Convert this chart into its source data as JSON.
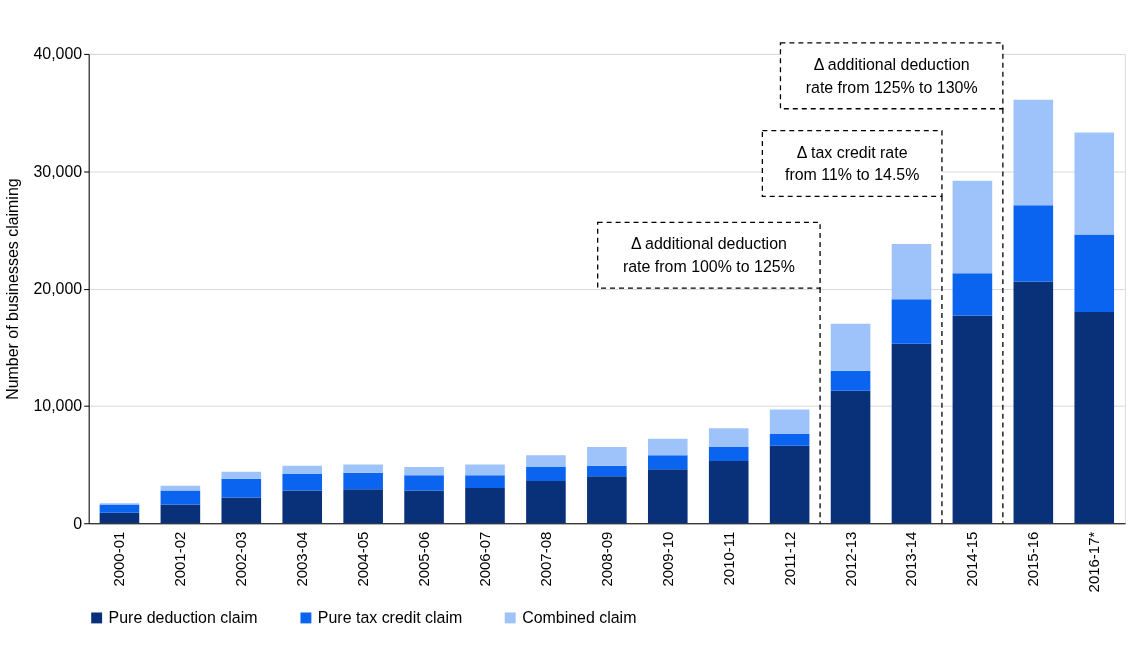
{
  "chart_data": {
    "type": "bar",
    "stacked": true,
    "ylabel": "Number of businesses claiming",
    "categories": [
      "2000-01",
      "2001-02",
      "2002-03",
      "2003-04",
      "2004-05",
      "2005-06",
      "2006-07",
      "2007-08",
      "2008-09",
      "2009-10",
      "2010-11",
      "2011-12",
      "2012-13",
      "2013-14",
      "2014-15",
      "2015-16",
      "2016-17*"
    ],
    "series": [
      {
        "name": "Pure deduction claim",
        "color": "#08317a",
        "values": [
          900,
          1600,
          2200,
          2800,
          2900,
          2800,
          3000,
          3600,
          4000,
          4600,
          5300,
          6600,
          11300,
          15300,
          17700,
          20600,
          18000
        ]
      },
      {
        "name": "Pure tax credit claim",
        "color": "#0a64f0",
        "values": [
          700,
          1200,
          1600,
          1400,
          1400,
          1300,
          1100,
          1200,
          900,
          1200,
          1200,
          1000,
          1700,
          3800,
          3600,
          6500,
          6600
        ]
      },
      {
        "name": "Combined claim",
        "color": "#9ec3fb",
        "values": [
          100,
          400,
          600,
          700,
          700,
          700,
          900,
          1000,
          1600,
          1400,
          1600,
          2100,
          4000,
          4700,
          7900,
          9000,
          8700
        ]
      }
    ],
    "ylim": [
      0,
      40000
    ],
    "yticks": [
      0,
      {
        "value": 10000,
        "label": "10,000"
      },
      {
        "value": 20000,
        "label": "20,000"
      },
      {
        "value": 30000,
        "label": "30,000"
      },
      {
        "value": 40000,
        "label": "40,000"
      }
    ],
    "grid": "y",
    "legend": "bottom",
    "ref_lines": [
      {
        "axis": "x",
        "value": "2012-13",
        "label": "Δ additional deduction rate from 100% to 125%",
        "line_style": "dashed"
      },
      {
        "axis": "x",
        "value": "2014-15",
        "label": "Δ tax credit rate from 11% to 14.5%",
        "line_style": "dashed"
      },
      {
        "axis": "x",
        "value": "2015-16",
        "label": "Δ additional deduction rate from 125% to 130%",
        "line_style": "dashed"
      }
    ]
  }
}
